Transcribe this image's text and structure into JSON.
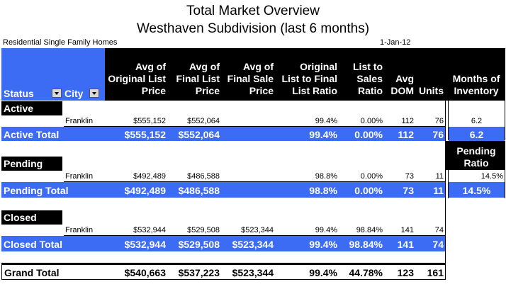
{
  "title": {
    "line1": "Total Market Overview",
    "line2": "Westhaven Subdivision (last 6 months)"
  },
  "subtitle": {
    "left": "Residential Single Family Homes",
    "date": "1-Jan-12"
  },
  "headers": {
    "status": "Status",
    "city": "City",
    "avg_orig_list": [
      "Avg of",
      "Original List",
      "Price"
    ],
    "avg_final_list": [
      "Avg of",
      "Final List",
      "Price"
    ],
    "avg_final_sale": [
      "Avg of",
      "Final Sale",
      "Price"
    ],
    "orig_list_ratio": [
      "Original",
      "List to Final",
      "List Ratio"
    ],
    "list_sales_ratio": [
      "List to",
      "Sales",
      "Ratio"
    ],
    "avg_dom": [
      "Avg",
      "DOM"
    ],
    "units": "Units",
    "months_inventory": [
      "Months of",
      "Inventory"
    ]
  },
  "groups": {
    "active": {
      "label": "Active",
      "row": {
        "city": "Franklin",
        "orig": "$555,152",
        "final_list": "$552,064",
        "final_sale": "",
        "ratio1": "99.4%",
        "ratio2": "0.00%",
        "dom": "112",
        "units": "76"
      },
      "total": {
        "label": "Active Total",
        "orig": "$555,152",
        "final_list": "$552,064",
        "final_sale": "",
        "ratio1": "99.4%",
        "ratio2": "0.00%",
        "dom": "112",
        "units": "76"
      },
      "extra_value": "6.2",
      "extra_total": "6.2"
    },
    "pending": {
      "label": "Pending",
      "extra_header": [
        "Pending",
        "Ratio"
      ],
      "row": {
        "city": "Franklin",
        "orig": "$492,489",
        "final_list": "$486,588",
        "final_sale": "",
        "ratio1": "98.8%",
        "ratio2": "0.00%",
        "dom": "73",
        "units": "11"
      },
      "total": {
        "label": "Pending Total",
        "orig": "$492,489",
        "final_list": "$486,588",
        "final_sale": "",
        "ratio1": "98.8%",
        "ratio2": "0.00%",
        "dom": "73",
        "units": "11"
      },
      "extra_value": "14.5%",
      "extra_total": "14.5%"
    },
    "closed": {
      "label": "Closed",
      "row": {
        "city": "Franklin",
        "orig": "$532,944",
        "final_list": "$529,508",
        "final_sale": "$523,344",
        "ratio1": "99.4%",
        "ratio2": "98.84%",
        "dom": "141",
        "units": "74"
      },
      "total": {
        "label": "Closed Total",
        "orig": "$532,944",
        "final_list": "$529,508",
        "final_sale": "$523,344",
        "ratio1": "99.4%",
        "ratio2": "98.84%",
        "dom": "141",
        "units": "74"
      }
    }
  },
  "grand_total": {
    "label": "Grand Total",
    "orig": "$540,663",
    "final_list": "$537,223",
    "final_sale": "$523,344",
    "ratio1": "99.4%",
    "ratio2": "44.78%",
    "dom": "123",
    "units": "161"
  }
}
